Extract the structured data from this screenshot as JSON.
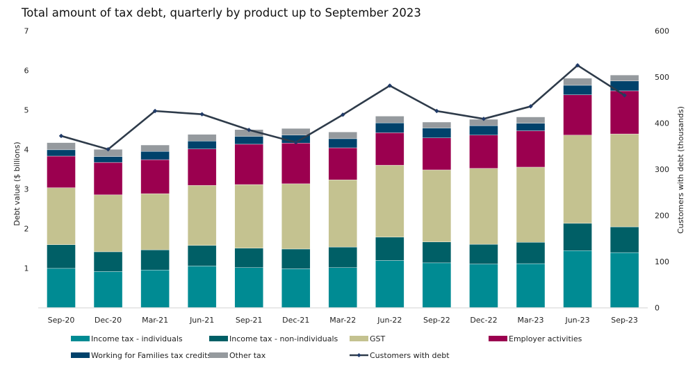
{
  "chart_data": {
    "type": "bar",
    "stacked": true,
    "title": "Total amount of tax debt, quarterly by product up to September 2023",
    "xlabel": "",
    "ylabel": "Debt value ($ billions)",
    "y2label": "Customers with debt (thousands)",
    "ylim": [
      0,
      7
    ],
    "y2lim": [
      0,
      600
    ],
    "yticks": [
      "1",
      "2",
      "3",
      "4",
      "5",
      "6",
      "7"
    ],
    "y2ticks": [
      "0",
      "100",
      "200",
      "300",
      "400",
      "500",
      "600"
    ],
    "grid": false,
    "legend_position": "bottom",
    "categories": [
      "Sep-20",
      "Dec-20",
      "Mar-21",
      "Jun-21",
      "Sep-21",
      "Dec-21",
      "Mar-22",
      "Jun-22",
      "Sep-22",
      "Dec-22",
      "Mar-23",
      "Jun-23",
      "Sep-23"
    ],
    "series": [
      {
        "name": "Income tax - individuals",
        "color": "#008B93",
        "values": [
          0.99,
          0.91,
          0.95,
          1.05,
          1.01,
          0.98,
          1.01,
          1.19,
          1.13,
          1.1,
          1.11,
          1.44,
          1.39
        ]
      },
      {
        "name": "Income tax - non-individuals",
        "color": "#005F66",
        "values": [
          0.6,
          0.5,
          0.51,
          0.52,
          0.49,
          0.5,
          0.52,
          0.59,
          0.53,
          0.5,
          0.54,
          0.69,
          0.65
        ]
      },
      {
        "name": "GST",
        "color": "#C4C290",
        "values": [
          1.44,
          1.44,
          1.42,
          1.52,
          1.61,
          1.65,
          1.7,
          1.82,
          1.82,
          1.92,
          1.9,
          2.23,
          2.35
        ]
      },
      {
        "name": "Employer activities",
        "color": "#9B004F",
        "values": [
          0.8,
          0.82,
          0.86,
          0.92,
          1.02,
          1.03,
          0.81,
          0.82,
          0.81,
          0.84,
          0.92,
          1.02,
          1.09
        ]
      },
      {
        "name": "Working for Families tax credits",
        "color": "#00426B",
        "values": [
          0.16,
          0.15,
          0.21,
          0.2,
          0.2,
          0.2,
          0.23,
          0.25,
          0.25,
          0.24,
          0.19,
          0.24,
          0.25
        ]
      },
      {
        "name": "Other tax",
        "color": "#959A9E",
        "values": [
          0.18,
          0.18,
          0.16,
          0.17,
          0.17,
          0.17,
          0.17,
          0.17,
          0.15,
          0.16,
          0.16,
          0.18,
          0.15
        ]
      }
    ],
    "line_series": {
      "name": "Customers with debt",
      "axis": "right",
      "color": "#2E3B4A",
      "values": [
        372,
        343,
        426,
        419,
        385,
        358,
        418,
        481,
        426,
        409,
        436,
        525,
        460
      ]
    }
  }
}
